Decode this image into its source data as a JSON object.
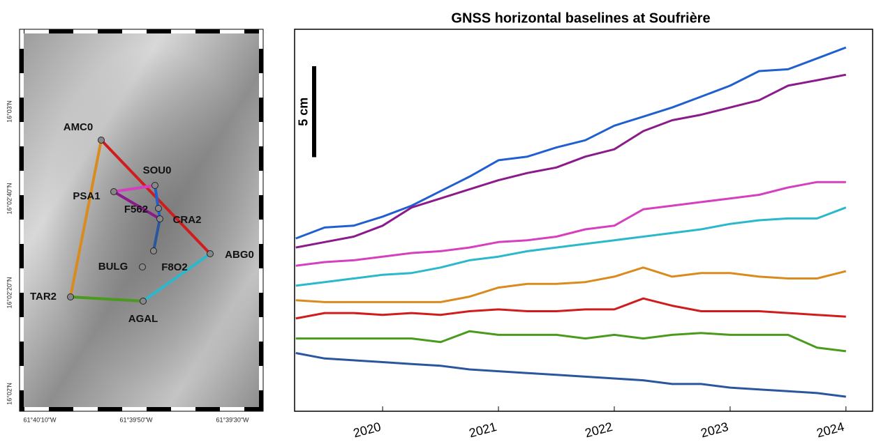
{
  "map": {
    "stations": [
      "AMC0",
      "SOU0",
      "PSA1",
      "F562",
      "CRA2",
      "ABG0",
      "BULG",
      "F8O2",
      "TAR2",
      "AGAL"
    ],
    "edges": [
      {
        "from": "AMC0",
        "to": "ABG0",
        "color": "#d01c1c"
      },
      {
        "from": "AMC0",
        "to": "TAR2",
        "color": "#d98b1e"
      },
      {
        "from": "TAR2",
        "to": "AGAL",
        "color": "#4a9a1c"
      },
      {
        "from": "AGAL",
        "to": "ABG0",
        "color": "#2ab8cc"
      },
      {
        "from": "PSA1",
        "to": "SOU0",
        "color": "#d63fbf"
      },
      {
        "from": "PSA1",
        "to": "CRA2",
        "color": "#8b1a8b"
      },
      {
        "from": "SOU0",
        "to": "CRA2",
        "color": "#1f5fd0"
      },
      {
        "from": "CRA2",
        "to": "F8O2",
        "color": "#2a56a0"
      }
    ],
    "lat_labels": [
      "16°03'N",
      "16°02'40\"N",
      "16°02'20\"N",
      "16°02'N"
    ],
    "lon_labels": [
      "61°40'10\"W",
      "61°39'50\"W",
      "61°39'30\"W"
    ]
  },
  "chart_data": {
    "type": "line",
    "title": "GNSS horizontal baselines at Soufrière",
    "scale_bar": {
      "label": "5 cm",
      "value": 5
    },
    "x": [
      2019.25,
      2019.5,
      2019.75,
      2020,
      2020.25,
      2020.5,
      2020.75,
      2021,
      2021.25,
      2021.5,
      2021.75,
      2022,
      2022.25,
      2022.5,
      2022.75,
      2023,
      2023.25,
      2023.5,
      2023.75,
      2024
    ],
    "xlim": [
      2019.24,
      2024.23
    ],
    "xticks": [
      2020,
      2021,
      2022,
      2023,
      2024
    ],
    "ylim": [
      0,
      21
    ],
    "series": [
      {
        "color": "#1f5fd0",
        "values": [
          9.5,
          10.1,
          10.2,
          10.7,
          11.3,
          12.1,
          12.9,
          13.8,
          14.0,
          14.5,
          14.9,
          15.7,
          16.2,
          16.7,
          17.3,
          17.9,
          18.7,
          18.8,
          19.4,
          20.0
        ]
      },
      {
        "color": "#8b1a8b",
        "values": [
          9.0,
          9.3,
          9.6,
          10.2,
          11.2,
          11.7,
          12.2,
          12.7,
          13.1,
          13.4,
          14.0,
          14.4,
          15.4,
          16.0,
          16.3,
          16.7,
          17.1,
          17.9,
          18.2,
          18.5
        ]
      },
      {
        "color": "#d63fbf",
        "values": [
          8.0,
          8.2,
          8.3,
          8.5,
          8.7,
          8.8,
          9.0,
          9.3,
          9.4,
          9.6,
          10.0,
          10.2,
          11.1,
          11.3,
          11.5,
          11.7,
          11.9,
          12.3,
          12.6,
          12.6
        ]
      },
      {
        "color": "#2ab8cc",
        "values": [
          6.9,
          7.1,
          7.3,
          7.5,
          7.6,
          7.9,
          8.3,
          8.5,
          8.8,
          9.0,
          9.2,
          9.4,
          9.6,
          9.8,
          10.0,
          10.3,
          10.5,
          10.6,
          10.6,
          11.2
        ]
      },
      {
        "color": "#d98b1e",
        "values": [
          6.1,
          6.0,
          6.0,
          6.0,
          6.0,
          6.0,
          6.3,
          6.8,
          7.0,
          7.0,
          7.1,
          7.4,
          7.9,
          7.4,
          7.6,
          7.6,
          7.4,
          7.3,
          7.3,
          7.7
        ]
      },
      {
        "color": "#d01c1c",
        "values": [
          5.1,
          5.4,
          5.4,
          5.3,
          5.4,
          5.3,
          5.5,
          5.6,
          5.5,
          5.5,
          5.6,
          5.6,
          6.2,
          5.8,
          5.5,
          5.5,
          5.5,
          5.4,
          5.3,
          5.2
        ]
      },
      {
        "color": "#4a9a1c",
        "values": [
          4.0,
          4.0,
          4.0,
          4.0,
          4.0,
          3.8,
          4.4,
          4.2,
          4.2,
          4.2,
          4.0,
          4.2,
          4.0,
          4.2,
          4.3,
          4.2,
          4.2,
          4.2,
          3.5,
          3.3
        ]
      },
      {
        "color": "#2a56a0",
        "values": [
          3.2,
          2.9,
          2.8,
          2.7,
          2.6,
          2.5,
          2.3,
          2.2,
          2.1,
          2.0,
          1.9,
          1.8,
          1.7,
          1.5,
          1.5,
          1.3,
          1.2,
          1.1,
          1.0,
          0.8
        ]
      }
    ]
  }
}
